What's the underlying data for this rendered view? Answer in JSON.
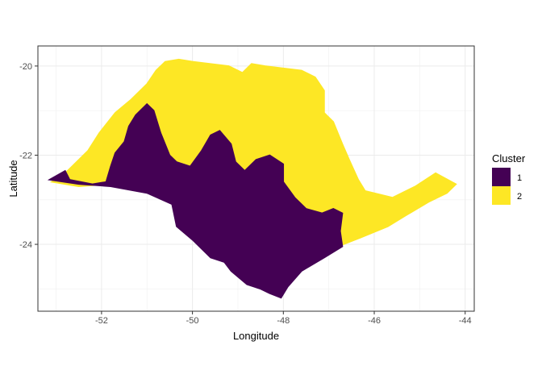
{
  "chart_data": {
    "type": "map",
    "xlabel": "Longitude",
    "ylabel": "Latitude",
    "xlim": [
      -53.4,
      -43.8
    ],
    "ylim": [
      -25.5,
      -19.55
    ],
    "x_ticks": [
      -52,
      -50,
      -48,
      -46,
      -44
    ],
    "y_ticks": [
      -20,
      -22,
      -24
    ],
    "x_tick_labels": [
      "-52",
      "-50",
      "-48",
      "-46",
      "-44"
    ],
    "y_tick_labels": [
      "-20",
      "-22",
      "-24"
    ],
    "grid": true,
    "legend": {
      "title": "Cluster",
      "position": "right",
      "entries": [
        {
          "label": "1",
          "color": "#440154"
        },
        {
          "label": "2",
          "color": "#FDE725"
        }
      ]
    },
    "regions": [
      {
        "cluster": "2",
        "color": "#FDE725",
        "polygon": [
          [
            -53.1,
            -22.6
          ],
          [
            -52.8,
            -22.4
          ],
          [
            -52.6,
            -22.2
          ],
          [
            -52.3,
            -21.9
          ],
          [
            -52.05,
            -21.5
          ],
          [
            -51.7,
            -21.05
          ],
          [
            -51.35,
            -20.75
          ],
          [
            -51.0,
            -20.4
          ],
          [
            -50.8,
            -20.1
          ],
          [
            -50.6,
            -19.9
          ],
          [
            -50.3,
            -19.85
          ],
          [
            -50.0,
            -19.9
          ],
          [
            -49.6,
            -19.95
          ],
          [
            -49.2,
            -20.0
          ],
          [
            -48.9,
            -20.15
          ],
          [
            -48.7,
            -19.95
          ],
          [
            -48.4,
            -20.0
          ],
          [
            -48.0,
            -20.05
          ],
          [
            -47.6,
            -20.1
          ],
          [
            -47.3,
            -20.25
          ],
          [
            -47.1,
            -20.55
          ],
          [
            -47.1,
            -21.05
          ],
          [
            -46.9,
            -21.25
          ],
          [
            -46.8,
            -21.5
          ],
          [
            -46.7,
            -21.75
          ],
          [
            -46.55,
            -22.1
          ],
          [
            -46.35,
            -22.55
          ],
          [
            -46.2,
            -22.8
          ],
          [
            -45.6,
            -22.95
          ],
          [
            -45.1,
            -22.7
          ],
          [
            -44.65,
            -22.4
          ],
          [
            -44.2,
            -22.65
          ],
          [
            -44.4,
            -22.85
          ],
          [
            -44.8,
            -23.05
          ],
          [
            -45.3,
            -23.35
          ],
          [
            -45.7,
            -23.6
          ],
          [
            -46.3,
            -23.85
          ],
          [
            -46.8,
            -24.05
          ],
          [
            -47.0,
            -24.0
          ],
          [
            -47.3,
            -23.6
          ],
          [
            -47.6,
            -23.45
          ],
          [
            -47.8,
            -23.7
          ],
          [
            -48.0,
            -23.3
          ],
          [
            -48.5,
            -22.7
          ],
          [
            -48.7,
            -22.4
          ],
          [
            -48.9,
            -22.3
          ],
          [
            -49.2,
            -22.35
          ],
          [
            -49.8,
            -22.4
          ],
          [
            -50.2,
            -22.45
          ],
          [
            -50.7,
            -22.6
          ],
          [
            -51.2,
            -22.6
          ],
          [
            -51.8,
            -22.65
          ],
          [
            -52.5,
            -22.7
          ]
        ]
      },
      {
        "cluster": "1",
        "color": "#440154",
        "polygon": [
          [
            -53.15,
            -22.55
          ],
          [
            -52.8,
            -22.35
          ],
          [
            -52.7,
            -22.55
          ],
          [
            -52.2,
            -22.65
          ],
          [
            -51.9,
            -22.6
          ],
          [
            -51.8,
            -22.25
          ],
          [
            -51.7,
            -21.95
          ],
          [
            -51.5,
            -21.7
          ],
          [
            -51.4,
            -21.35
          ],
          [
            -51.25,
            -21.1
          ],
          [
            -51.0,
            -20.85
          ],
          [
            -50.85,
            -21.0
          ],
          [
            -50.7,
            -21.5
          ],
          [
            -50.6,
            -21.75
          ],
          [
            -50.5,
            -22.0
          ],
          [
            -50.35,
            -22.15
          ],
          [
            -50.05,
            -22.25
          ],
          [
            -49.8,
            -21.9
          ],
          [
            -49.6,
            -21.55
          ],
          [
            -49.4,
            -21.45
          ],
          [
            -49.15,
            -21.75
          ],
          [
            -49.05,
            -22.15
          ],
          [
            -48.85,
            -22.35
          ],
          [
            -48.6,
            -22.1
          ],
          [
            -48.3,
            -22.0
          ],
          [
            -48.0,
            -22.2
          ],
          [
            -48.0,
            -22.6
          ],
          [
            -47.75,
            -22.95
          ],
          [
            -47.5,
            -23.2
          ],
          [
            -47.15,
            -23.3
          ],
          [
            -46.9,
            -23.2
          ],
          [
            -46.7,
            -23.3
          ],
          [
            -46.75,
            -23.7
          ],
          [
            -46.7,
            -24.05
          ],
          [
            -47.1,
            -24.3
          ],
          [
            -47.6,
            -24.6
          ],
          [
            -47.9,
            -24.95
          ],
          [
            -48.05,
            -25.2
          ],
          [
            -48.3,
            -25.1
          ],
          [
            -48.5,
            -25.0
          ],
          [
            -48.8,
            -24.9
          ],
          [
            -49.15,
            -24.6
          ],
          [
            -49.3,
            -24.4
          ],
          [
            -49.6,
            -24.3
          ],
          [
            -50.0,
            -23.9
          ],
          [
            -50.35,
            -23.6
          ],
          [
            -50.45,
            -23.1
          ],
          [
            -51.0,
            -22.85
          ],
          [
            -51.8,
            -22.7
          ],
          [
            -52.5,
            -22.65
          ]
        ]
      }
    ]
  }
}
